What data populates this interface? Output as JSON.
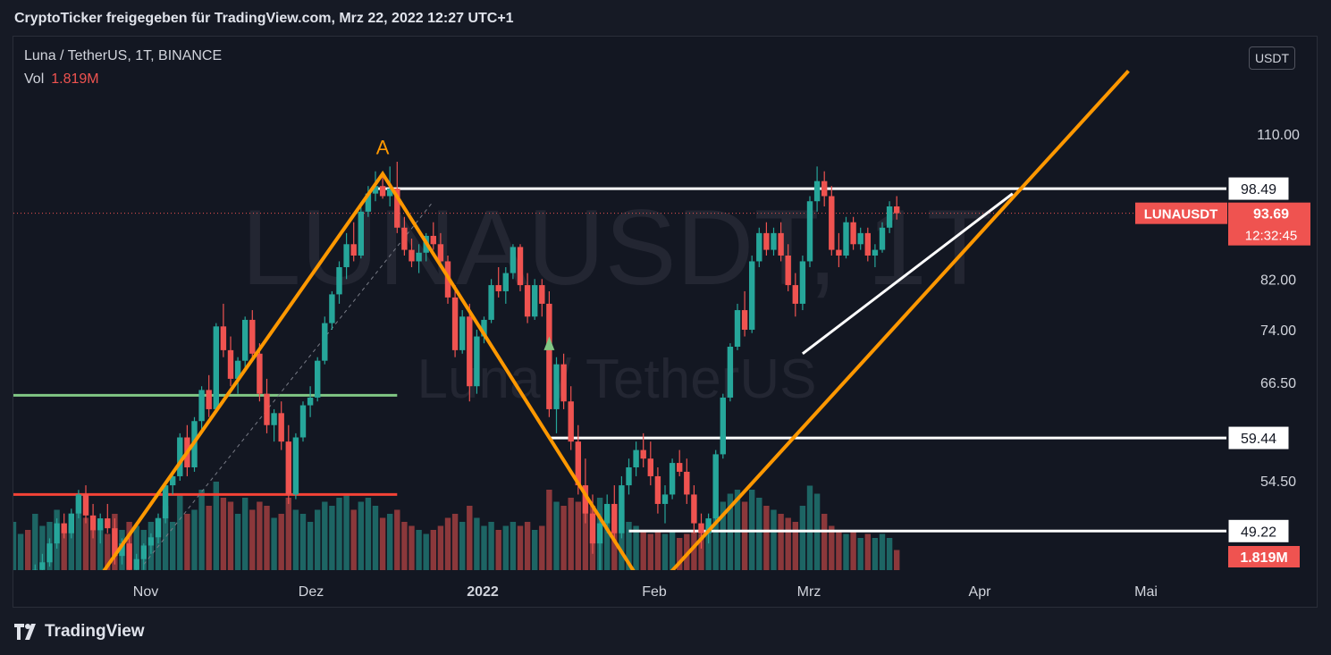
{
  "header": {
    "title": "CryptoTicker freigegeben für TradingView.com, Mrz 22, 2022 12:27 UTC+1"
  },
  "legend": {
    "symbol": "Luna / TetherUS, 1T, BINANCE",
    "vol_label": "Vol",
    "vol_value": "1.819M"
  },
  "watermark": {
    "ticker": "LUNAUSDT, 1T",
    "name": "Luna / TetherUS"
  },
  "unit_button": "USDT",
  "footer": {
    "brand": "TradingView",
    "icon": "tradingview-logo-icon"
  },
  "colors": {
    "background": "#131722",
    "up": "#26a69a",
    "down": "#ef5350",
    "pattern_line": "#ff9800",
    "support": "#ffffff",
    "green_level": "#81c784",
    "red_level": "#f44336"
  },
  "chart_data": {
    "type": "candlestick",
    "title": "Luna / TetherUS, 1T, BINANCE",
    "x_ticks": [
      "Nov",
      "Dez",
      "2022",
      "Feb",
      "Mrz",
      "Apr",
      "Mai"
    ],
    "y_ticks": [
      "110.00",
      "82.00",
      "74.00",
      "66.50",
      "54.50"
    ],
    "y_scale": "log",
    "y_range": [
      44,
      125
    ],
    "price_labels": [
      {
        "text": "98.49",
        "value": 98.49,
        "color": "#ffffff"
      },
      {
        "text": "59.44",
        "value": 59.44,
        "color": "#ffffff"
      },
      {
        "text": "49.22",
        "value": 49.22,
        "color": "#ffffff"
      }
    ],
    "last_price": {
      "symbol": "LUNAUSDT",
      "price": "93.69",
      "countdown": "12:32:45",
      "value": 93.69
    },
    "volume_label": "1.819M",
    "pattern_label": "A",
    "candles": [
      [
        42,
        43.5,
        41,
        42.8
      ],
      [
        42.8,
        44,
        41.5,
        43.2
      ],
      [
        43.2,
        44.5,
        42,
        42.5
      ],
      [
        42.5,
        46,
        42,
        45.5
      ],
      [
        45.5,
        47,
        44.5,
        46.2
      ],
      [
        46.2,
        48.5,
        45.8,
        48
      ],
      [
        48,
        50.5,
        47.5,
        50
      ],
      [
        50,
        51,
        48.5,
        49
      ],
      [
        49,
        51.5,
        48.5,
        51
      ],
      [
        51,
        53.5,
        50.5,
        53
      ],
      [
        53,
        54,
        50,
        50.8
      ],
      [
        50.8,
        52,
        48.5,
        49.3
      ],
      [
        49.3,
        51,
        48,
        50.5
      ],
      [
        50.5,
        52,
        49,
        49.5
      ],
      [
        49.5,
        50.5,
        46,
        46.8
      ],
      [
        46.8,
        48.5,
        46,
        48
      ],
      [
        48,
        49,
        45,
        45.5
      ],
      [
        45.5,
        47,
        44,
        46.5
      ],
      [
        46.5,
        48,
        45.5,
        47.8
      ],
      [
        47.8,
        49,
        47,
        48.6
      ],
      [
        48.6,
        51,
        48,
        50.5
      ],
      [
        50.5,
        54.5,
        50,
        54
      ],
      [
        54,
        55.5,
        53,
        55
      ],
      [
        55,
        60,
        54.5,
        59.5
      ],
      [
        59.5,
        61,
        55,
        56
      ],
      [
        56,
        62,
        55.5,
        61.5
      ],
      [
        61.5,
        66,
        60,
        65.5
      ],
      [
        65.5,
        67.5,
        62,
        63
      ],
      [
        63,
        75,
        62.5,
        74.5
      ],
      [
        74.5,
        78,
        70,
        71
      ],
      [
        71,
        73,
        66,
        67
      ],
      [
        67,
        70,
        65,
        69.5
      ],
      [
        69.5,
        76,
        68.5,
        75.5
      ],
      [
        75.5,
        77,
        70,
        70.5
      ],
      [
        70.5,
        72,
        64,
        65
      ],
      [
        65,
        67,
        60,
        61
      ],
      [
        61,
        63,
        59,
        62.5
      ],
      [
        62.5,
        64,
        58,
        59
      ],
      [
        59,
        61,
        52,
        53
      ],
      [
        53,
        60,
        52.5,
        59.5
      ],
      [
        59.5,
        64,
        59,
        63.5
      ],
      [
        63.5,
        66,
        62,
        64.5
      ],
      [
        64.5,
        70,
        64,
        69.5
      ],
      [
        69.5,
        76,
        69,
        75
      ],
      [
        75,
        80,
        74,
        79.5
      ],
      [
        79.5,
        85,
        78,
        84
      ],
      [
        84,
        90,
        82,
        88
      ],
      [
        88,
        92,
        85,
        86
      ],
      [
        86,
        95,
        85.5,
        94
      ],
      [
        94,
        99,
        93,
        97.5
      ],
      [
        97.5,
        102,
        96,
        99
      ],
      [
        99,
        101,
        96.5,
        97
      ],
      [
        97,
        103,
        95,
        98.5
      ],
      [
        98.5,
        104,
        90,
        91
      ],
      [
        91,
        93,
        86,
        87
      ],
      [
        87,
        89,
        84,
        85
      ],
      [
        85,
        88,
        83,
        86.5
      ],
      [
        86.5,
        90,
        85,
        89.5
      ],
      [
        89.5,
        92,
        87,
        88
      ],
      [
        88,
        90,
        84,
        85
      ],
      [
        85,
        86,
        78,
        79
      ],
      [
        79,
        81,
        70,
        71
      ],
      [
        71,
        77,
        70.5,
        76
      ],
      [
        76,
        78,
        64,
        66
      ],
      [
        66,
        74,
        65,
        73
      ],
      [
        73,
        76,
        72,
        75.5
      ],
      [
        75.5,
        82,
        75,
        81
      ],
      [
        81,
        84,
        79,
        80
      ],
      [
        80,
        84,
        78,
        83
      ],
      [
        83,
        88,
        82,
        87.5
      ],
      [
        87.5,
        88,
        80,
        81
      ],
      [
        81,
        83,
        75,
        76
      ],
      [
        76,
        82,
        75.5,
        81
      ],
      [
        81,
        82,
        76,
        78
      ],
      [
        78,
        80,
        62,
        63
      ],
      [
        63,
        70,
        60,
        69
      ],
      [
        69,
        70.5,
        63,
        64
      ],
      [
        64,
        66,
        58,
        59
      ],
      [
        59,
        61,
        53,
        54
      ],
      [
        54,
        57,
        50,
        51
      ],
      [
        51,
        53,
        47,
        48
      ],
      [
        48,
        51,
        44,
        50
      ],
      [
        50,
        53,
        49,
        52
      ],
      [
        52,
        54,
        48,
        49
      ],
      [
        49,
        55,
        48.5,
        54
      ],
      [
        54,
        57,
        53,
        56
      ],
      [
        56,
        59,
        55,
        58
      ],
      [
        58,
        60,
        56,
        57
      ],
      [
        57,
        59,
        54,
        55
      ],
      [
        55,
        56,
        51,
        52
      ],
      [
        52,
        54,
        50,
        53
      ],
      [
        53,
        57,
        52.5,
        56.5
      ],
      [
        56.5,
        58,
        55,
        55.5
      ],
      [
        55.5,
        57,
        52,
        53
      ],
      [
        53,
        54,
        49,
        50
      ],
      [
        50,
        51,
        47.5,
        49
      ],
      [
        49,
        51,
        48,
        50.5
      ],
      [
        50.5,
        58,
        50,
        57.5
      ],
      [
        57.5,
        65,
        57,
        64.5
      ],
      [
        64.5,
        72,
        64,
        71.5
      ],
      [
        71.5,
        78,
        71,
        77
      ],
      [
        77,
        80,
        73,
        74
      ],
      [
        74,
        86,
        73.5,
        85
      ],
      [
        85,
        91,
        84,
        90
      ],
      [
        90,
        92,
        86,
        87
      ],
      [
        87,
        91,
        86,
        90
      ],
      [
        90,
        92,
        85,
        86
      ],
      [
        86,
        88,
        80,
        81
      ],
      [
        81,
        83,
        76,
        78
      ],
      [
        78,
        86,
        77,
        85
      ],
      [
        85,
        97,
        84,
        96
      ],
      [
        96,
        103,
        94,
        100
      ],
      [
        100,
        102,
        95,
        97
      ],
      [
        97,
        99,
        86,
        87
      ],
      [
        87,
        90,
        84,
        86
      ],
      [
        86,
        93,
        85.5,
        92
      ],
      [
        92,
        93,
        87,
        88
      ],
      [
        88,
        91,
        87,
        90
      ],
      [
        90,
        91,
        85,
        86
      ],
      [
        86,
        88,
        84,
        87
      ],
      [
        87,
        92,
        86.5,
        91
      ],
      [
        91,
        96,
        90,
        95
      ],
      [
        95,
        97,
        92.5,
        93.69
      ]
    ],
    "volumes": [
      0.6,
      0.45,
      0.5,
      0.7,
      0.55,
      0.6,
      0.75,
      0.5,
      0.55,
      0.9,
      0.65,
      0.5,
      0.55,
      0.45,
      0.7,
      0.5,
      0.6,
      0.55,
      0.5,
      0.6,
      0.65,
      0.8,
      0.6,
      0.95,
      0.7,
      0.75,
      1.0,
      0.8,
      1.1,
      0.9,
      0.85,
      0.7,
      0.9,
      0.75,
      0.85,
      0.8,
      0.65,
      0.7,
      0.9,
      0.75,
      0.7,
      0.6,
      0.75,
      0.85,
      0.8,
      0.9,
      0.95,
      0.75,
      0.85,
      0.9,
      0.8,
      0.65,
      0.7,
      0.75,
      0.6,
      0.55,
      0.5,
      0.45,
      0.5,
      0.55,
      0.65,
      0.7,
      0.6,
      0.8,
      0.65,
      0.55,
      0.6,
      0.5,
      0.55,
      0.6,
      0.55,
      0.6,
      0.5,
      0.55,
      1.0,
      0.85,
      0.8,
      0.9,
      0.85,
      0.95,
      0.8,
      0.9,
      0.7,
      0.65,
      0.75,
      0.6,
      0.55,
      0.5,
      0.45,
      0.5,
      0.45,
      0.5,
      0.4,
      0.45,
      0.5,
      0.45,
      0.55,
      0.65,
      0.85,
      0.95,
      1.0,
      0.85,
      1.0,
      0.9,
      0.8,
      0.75,
      0.7,
      0.65,
      0.6,
      0.8,
      1.05,
      0.95,
      0.7,
      0.55,
      0.5,
      0.45,
      0.5,
      0.4,
      0.45,
      0.4,
      0.45,
      0.4,
      0.25
    ],
    "levels": [
      {
        "kind": "resistance",
        "value": 98.49,
        "from_bar": 50,
        "color": "#ffffff"
      },
      {
        "kind": "support",
        "value": 59.44,
        "from_bar": 74,
        "color": "#ffffff"
      },
      {
        "kind": "support",
        "value": 49.22,
        "from_bar": 85,
        "color": "#ffffff"
      },
      {
        "kind": "level",
        "value": 64.8,
        "from_bar": -4,
        "to_bar": 53,
        "color": "#81c784"
      },
      {
        "kind": "level",
        "value": 53.0,
        "from_bar": -4,
        "to_bar": 53,
        "color": "#f44336"
      }
    ]
  }
}
